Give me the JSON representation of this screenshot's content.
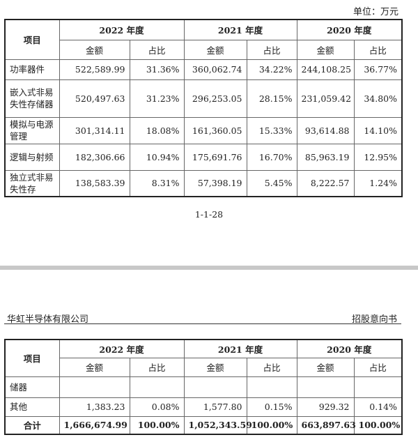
{
  "unit_label": "单位：万元",
  "headers": {
    "item": "项目",
    "years": [
      "2022 年度",
      "2021 年度",
      "2020 年度"
    ],
    "amount": "金额",
    "ratio": "占比"
  },
  "table1_rows": [
    {
      "label": "功率器件",
      "v": [
        "522,589.99",
        "31.36%",
        "360,062.74",
        "34.22%",
        "244,108.25",
        "36.77%"
      ]
    },
    {
      "label": "嵌入式非易失性存储器",
      "v": [
        "520,497.63",
        "31.23%",
        "296,253.05",
        "28.15%",
        "231,059.42",
        "34.80%"
      ]
    },
    {
      "label": "模拟与电源管理",
      "v": [
        "301,314.11",
        "18.08%",
        "161,360.05",
        "15.33%",
        "93,614.88",
        "14.10%"
      ]
    },
    {
      "label": "逻辑与射频",
      "v": [
        "182,306.66",
        "10.94%",
        "175,691.76",
        "16.70%",
        "85,963.19",
        "12.95%"
      ]
    },
    {
      "label": "独立式非易失性存",
      "v": [
        "138,583.39",
        "8.31%",
        "57,398.19",
        "5.45%",
        "8,222.57",
        "1.24%"
      ]
    }
  ],
  "page_number": "1-1-28",
  "company_name": "华虹半导体有限公司",
  "document_name": "招股意向书",
  "table2_rows": [
    {
      "label": "储器",
      "v": [
        "",
        "",
        "",
        "",
        "",
        ""
      ]
    },
    {
      "label": "其他",
      "v": [
        "1,383.23",
        "0.08%",
        "1,577.80",
        "0.15%",
        "929.32",
        "0.14%"
      ]
    }
  ],
  "total_row": {
    "label": "合计",
    "v": [
      "1,666,674.99",
      "100.00%",
      "1,052,343.59",
      "100.00%",
      "663,897.63",
      "100.00%"
    ]
  }
}
